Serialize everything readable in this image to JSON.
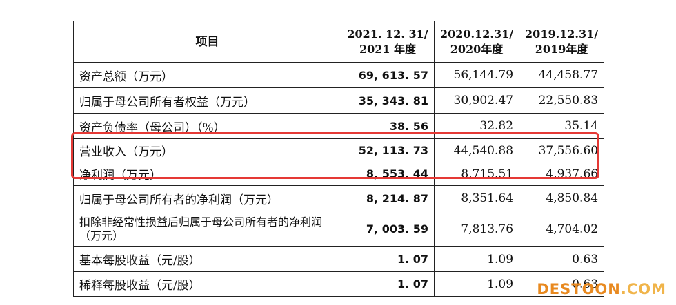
{
  "table": {
    "headers": [
      "项目",
      "2021. 12. 31/\n2021 年度",
      "2020.12.31/\n2020年度",
      "2019.12.31/\n2019年度"
    ],
    "rows": [
      {
        "label": "资产总额（万元）",
        "v2021": "69, 613. 57",
        "v2020": "56,144.79",
        "v2019": "44,458.77"
      },
      {
        "label": "归属于母公司所有者权益（万元）",
        "v2021": "35, 343. 81",
        "v2020": "30,902.47",
        "v2019": "22,550.83"
      },
      {
        "label": "资产负债率（母公司）（%）",
        "v2021": "38. 56",
        "v2020": "32.82",
        "v2019": "35.14"
      },
      {
        "label": "营业收入（万元）",
        "v2021": "52, 113. 73",
        "v2020": "44,540.88",
        "v2019": "37,556.60"
      },
      {
        "label": "净利润（万元）",
        "v2021": "8, 553. 44",
        "v2020": "8,715.51",
        "v2019": "4,937.66"
      },
      {
        "label": "归属于母公司所有者的净利润（万元）",
        "v2021": "8, 214. 87",
        "v2020": "8,351.64",
        "v2019": "4,850.84"
      },
      {
        "label": "扣除非经常性损益后归属于母公司所有者的净利润（万元）",
        "v2021": "7, 003. 59",
        "v2020": "7,813.76",
        "v2019": "4,704.02"
      },
      {
        "label": "基本每股收益（元/股）",
        "v2021": "1. 07",
        "v2020": "1.09",
        "v2019": "0.63"
      },
      {
        "label": "稀释每股收益（元/股）",
        "v2021": "1. 07",
        "v2020": "1.09",
        "v2019": "0.63"
      }
    ]
  },
  "watermark": {
    "part1": "DESTOON",
    "part2": ".COM"
  },
  "colors": {
    "highlight": "#e53935",
    "watermark_primary": "#e8891f",
    "watermark_secondary": "#f0b44a"
  }
}
